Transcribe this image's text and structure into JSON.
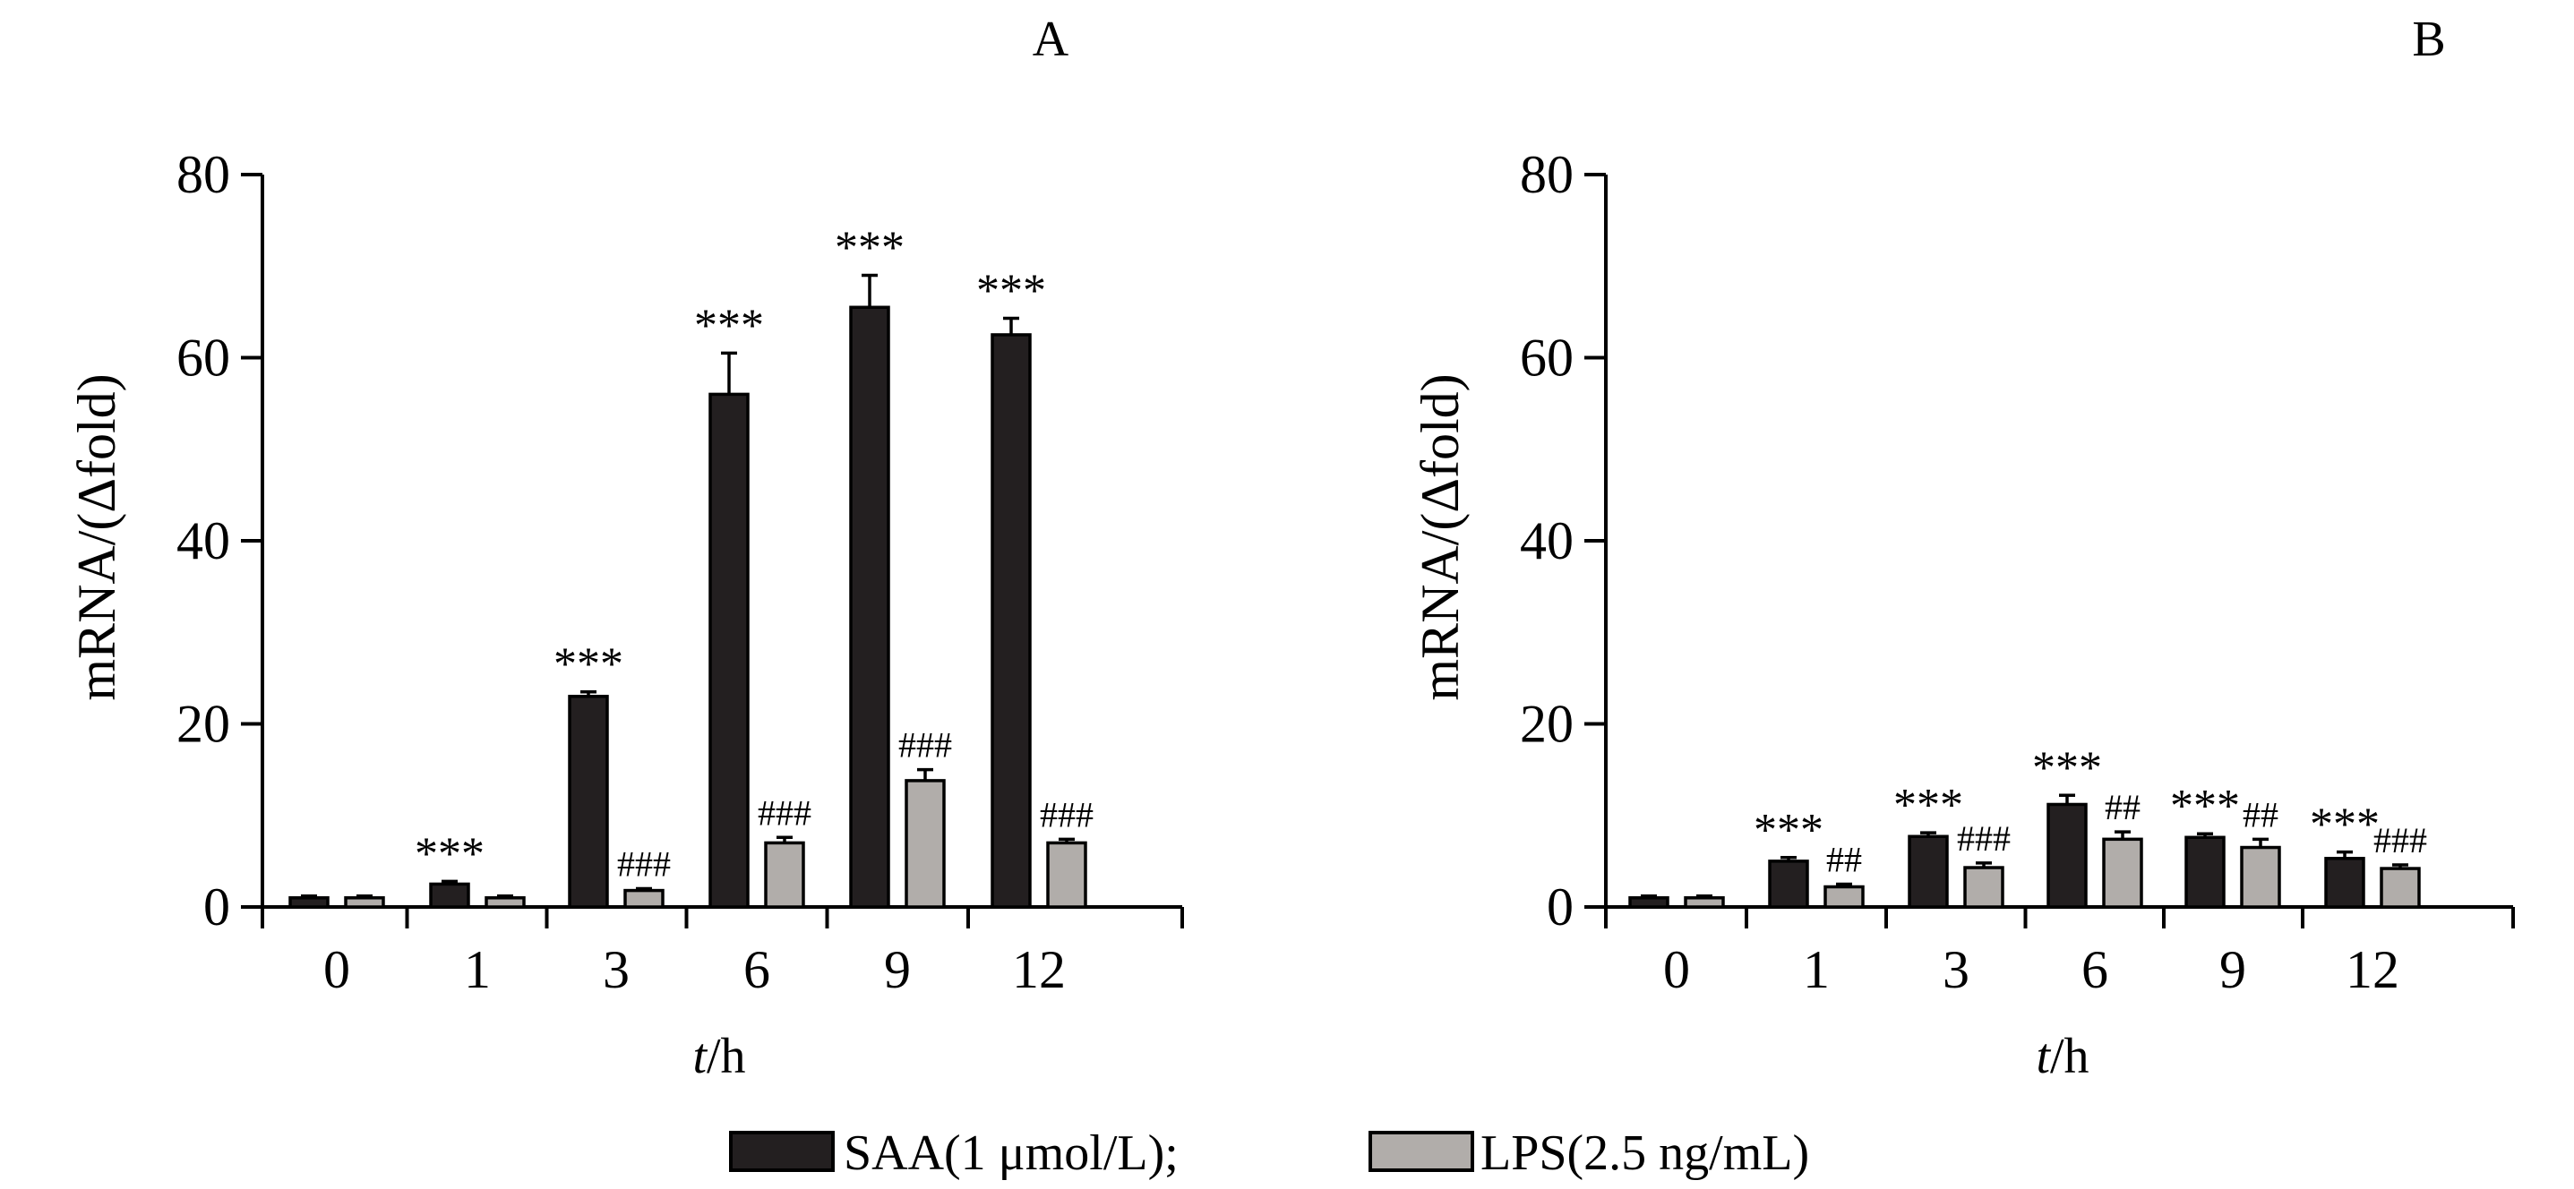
{
  "figure": {
    "legend": [
      {
        "label": "SAA(1 μmol/L);",
        "color": "#231f20"
      },
      {
        "label": "LPS(2.5 ng/mL)",
        "color": "#b1adaa"
      }
    ]
  },
  "chart_data": [
    {
      "type": "bar",
      "panel_label": "A",
      "ylabel": "mRNA/(Δfold)",
      "xlabel_italic": "t",
      "xlabel_rest": "/h",
      "ylim": [
        0,
        80
      ],
      "yticks": [
        0,
        20,
        40,
        60,
        80
      ],
      "categories": [
        "0",
        "1",
        "3",
        "6",
        "9",
        "12"
      ],
      "series": [
        {
          "name": "SAA(1 μmol/L)",
          "color": "#231f20",
          "values": [
            1.0,
            2.5,
            23.0,
            56.0,
            65.5,
            62.5
          ],
          "errors": [
            0.2,
            0.3,
            0.5,
            4.5,
            3.5,
            1.8
          ],
          "annotations": [
            "",
            "***",
            "***",
            "***",
            "***",
            "***"
          ]
        },
        {
          "name": "LPS(2.5 ng/mL)",
          "color": "#b1adaa",
          "values": [
            1.0,
            1.0,
            1.8,
            7.0,
            13.8,
            7.0
          ],
          "errors": [
            0.2,
            0.2,
            0.2,
            0.6,
            1.2,
            0.4
          ],
          "annotations": [
            "",
            "",
            "###",
            "###",
            "###",
            "###"
          ]
        }
      ]
    },
    {
      "type": "bar",
      "panel_label": "B",
      "ylabel": "mRNA/(Δfold)",
      "xlabel_italic": "t",
      "xlabel_rest": "/h",
      "ylim": [
        0,
        80
      ],
      "yticks": [
        0,
        20,
        40,
        60,
        80
      ],
      "categories": [
        "0",
        "1",
        "3",
        "6",
        "9",
        "12"
      ],
      "series": [
        {
          "name": "SAA(1 μmol/L)",
          "color": "#231f20",
          "values": [
            1.0,
            5.0,
            7.7,
            11.2,
            7.6,
            5.3
          ],
          "errors": [
            0.2,
            0.4,
            0.4,
            1.0,
            0.4,
            0.7
          ],
          "annotations": [
            "",
            "***",
            "***",
            "***",
            "***",
            "***"
          ]
        },
        {
          "name": "LPS(2.5 ng/mL)",
          "color": "#b1adaa",
          "values": [
            1.0,
            2.2,
            4.3,
            7.4,
            6.5,
            4.2
          ],
          "errors": [
            0.2,
            0.3,
            0.5,
            0.8,
            0.9,
            0.4
          ],
          "annotations": [
            "",
            "##",
            "###",
            "##",
            "##",
            "###"
          ]
        }
      ]
    }
  ]
}
